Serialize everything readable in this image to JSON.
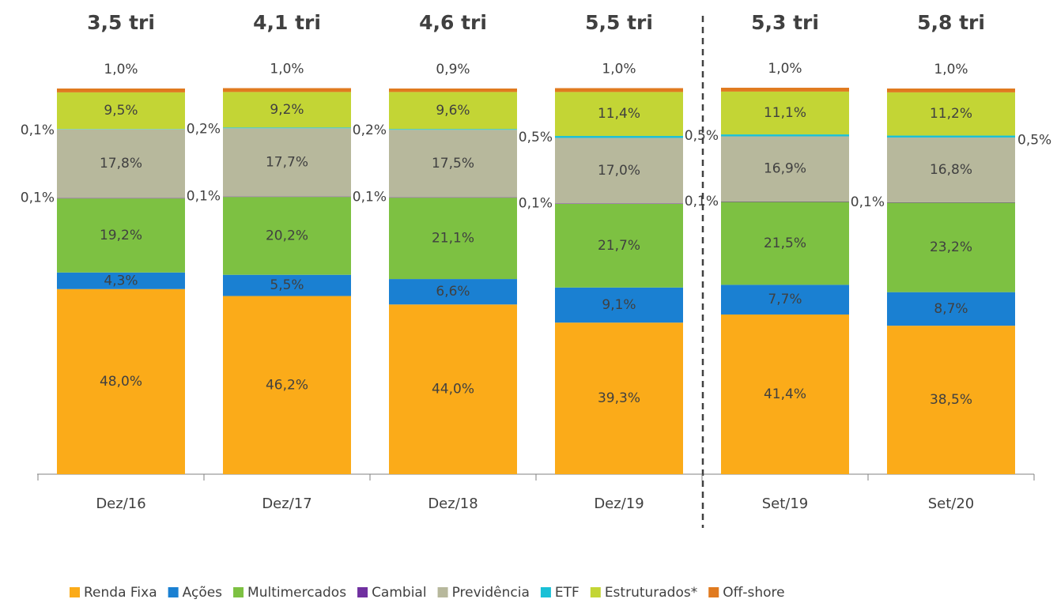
{
  "chart_data": {
    "type": "stacked_bar",
    "categories": [
      "Dez/16",
      "Dez/17",
      "Dez/18",
      "Dez/19",
      "Set/19",
      "Set/20"
    ],
    "totals": [
      "3,5 tri",
      "4,1 tri",
      "4,6 tri",
      "5,5 tri",
      "5,3 tri",
      "5,8 tri"
    ],
    "series": [
      {
        "name": "Renda Fixa",
        "color": "#fbab19",
        "values": [
          48.0,
          46.2,
          44.0,
          39.3,
          41.4,
          38.5
        ],
        "value_labels": [
          "48,0%",
          "46,2%",
          "44,0%",
          "39,3%",
          "41,4%",
          "38,5%"
        ]
      },
      {
        "name": "Ações",
        "color": "#1a80d2",
        "values": [
          4.3,
          5.5,
          6.6,
          9.1,
          7.7,
          8.7
        ],
        "value_labels": [
          "4,3%",
          "5,5%",
          "6,6%",
          "9,1%",
          "7,7%",
          "8,7%"
        ]
      },
      {
        "name": "Multimercados",
        "color": "#7dc142",
        "values": [
          19.2,
          20.2,
          21.1,
          21.7,
          21.5,
          23.2
        ],
        "value_labels": [
          "19,2%",
          "20,2%",
          "21,1%",
          "21,7%",
          "21,5%",
          "23,2%"
        ]
      },
      {
        "name": "Cambial",
        "color": "#7030a0",
        "values": [
          0.1,
          0.1,
          0.1,
          0.1,
          0.1,
          0.1
        ],
        "value_labels": [
          "0,1%",
          "0,1%",
          "0,1%",
          "0,1%",
          "0,1%",
          "0,1%"
        ]
      },
      {
        "name": "Previdência",
        "color": "#b7b89c",
        "values": [
          17.8,
          17.7,
          17.5,
          17.0,
          16.9,
          16.8
        ],
        "value_labels": [
          "17,8%",
          "17,7%",
          "17,5%",
          "17,0%",
          "16,9%",
          "16,8%"
        ]
      },
      {
        "name": "ETF",
        "color": "#19c0d6",
        "values": [
          0.1,
          0.2,
          0.2,
          0.5,
          0.5,
          0.5
        ],
        "value_labels": [
          "0,1%",
          "0,2%",
          "0,2%",
          "0,5%",
          "0,5%",
          "0,5%"
        ]
      },
      {
        "name": "Estruturados*",
        "color": "#c3d535",
        "values": [
          9.5,
          9.2,
          9.6,
          11.4,
          11.1,
          11.2
        ],
        "value_labels": [
          "9,5%",
          "9,2%",
          "9,6%",
          "11,4%",
          "11,1%",
          "11,2%"
        ]
      },
      {
        "name": "Off-shore",
        "color": "#e07a1f",
        "values": [
          1.0,
          1.0,
          0.9,
          1.0,
          1.0,
          1.0
        ],
        "value_labels": [
          "1,0%",
          "1,0%",
          "0,9%",
          "1,0%",
          "1,0%",
          "1,0%"
        ]
      }
    ]
  }
}
